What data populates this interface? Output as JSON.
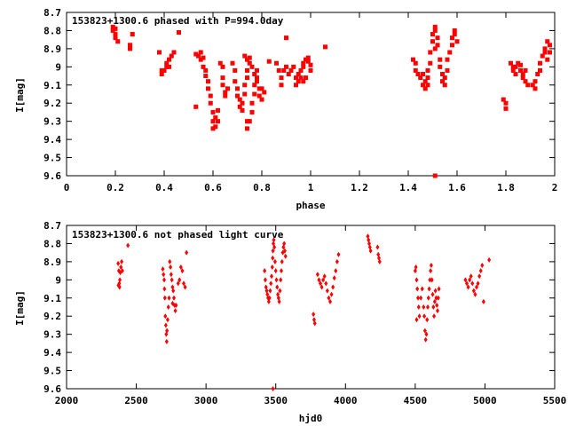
{
  "colors": {
    "points": "#ff0000",
    "frame": "#000000",
    "background": "#ffffff"
  },
  "chart_data": [
    {
      "type": "scatter",
      "title": "153823+1300.6 phased with P=994.0day",
      "xlabel": "phase",
      "ylabel": "I[mag]",
      "xlim": [
        0,
        2
      ],
      "ylim": [
        8.7,
        9.6
      ],
      "y_inverted": true,
      "grid": false,
      "marker": "filled-square",
      "xticks": [
        "0",
        "0.2",
        "0.4",
        "0.6",
        "0.8",
        "1",
        "1.2",
        "1.4",
        "1.6",
        "1.8",
        "2"
      ],
      "yticks": [
        "8.7",
        "8.8",
        "8.9",
        "9",
        "9.1",
        "9.2",
        "9.3",
        "9.4",
        "9.5",
        "9.6"
      ],
      "points": [
        [
          0.19,
          8.78
        ],
        [
          0.19,
          8.8
        ],
        [
          0.2,
          8.82
        ],
        [
          0.2,
          8.84
        ],
        [
          0.21,
          8.86
        ],
        [
          0.2,
          8.79
        ],
        [
          0.26,
          8.88
        ],
        [
          0.26,
          8.9
        ],
        [
          0.27,
          8.82
        ],
        [
          0.38,
          8.92
        ],
        [
          0.39,
          9.02
        ],
        [
          0.39,
          9.04
        ],
        [
          0.4,
          9.02
        ],
        [
          0.41,
          9.0
        ],
        [
          0.41,
          8.98
        ],
        [
          0.42,
          8.96
        ],
        [
          0.43,
          8.94
        ],
        [
          0.44,
          8.92
        ],
        [
          0.42,
          9.0
        ],
        [
          0.46,
          8.81
        ],
        [
          0.53,
          8.93
        ],
        [
          0.54,
          8.94
        ],
        [
          0.55,
          8.92
        ],
        [
          0.55,
          8.96
        ],
        [
          0.56,
          8.95
        ],
        [
          0.56,
          9.0
        ],
        [
          0.57,
          9.02
        ],
        [
          0.57,
          9.05
        ],
        [
          0.58,
          9.08
        ],
        [
          0.58,
          9.12
        ],
        [
          0.59,
          9.16
        ],
        [
          0.59,
          9.2
        ],
        [
          0.6,
          9.25
        ],
        [
          0.6,
          9.3
        ],
        [
          0.6,
          9.34
        ],
        [
          0.61,
          9.33
        ],
        [
          0.61,
          9.28
        ],
        [
          0.62,
          9.3
        ],
        [
          0.62,
          9.24
        ],
        [
          0.53,
          9.22
        ],
        [
          0.64,
          9.06
        ],
        [
          0.64,
          9.1
        ],
        [
          0.65,
          9.14
        ],
        [
          0.65,
          9.16
        ],
        [
          0.66,
          9.12
        ],
        [
          0.63,
          8.98
        ],
        [
          0.64,
          9.0
        ],
        [
          0.68,
          8.98
        ],
        [
          0.69,
          9.02
        ],
        [
          0.69,
          9.08
        ],
        [
          0.7,
          9.12
        ],
        [
          0.7,
          9.16
        ],
        [
          0.71,
          9.18
        ],
        [
          0.71,
          9.22
        ],
        [
          0.72,
          9.24
        ],
        [
          0.72,
          9.2
        ],
        [
          0.73,
          9.15
        ],
        [
          0.73,
          9.1
        ],
        [
          0.74,
          9.06
        ],
        [
          0.74,
          9.02
        ],
        [
          0.75,
          8.98
        ],
        [
          0.75,
          8.95
        ],
        [
          0.74,
          9.3
        ],
        [
          0.74,
          9.34
        ],
        [
          0.75,
          9.3
        ],
        [
          0.76,
          9.25
        ],
        [
          0.76,
          9.2
        ],
        [
          0.77,
          9.15
        ],
        [
          0.77,
          9.1
        ],
        [
          0.78,
          9.06
        ],
        [
          0.78,
          9.08
        ],
        [
          0.79,
          9.12
        ],
        [
          0.79,
          9.16
        ],
        [
          0.8,
          9.18
        ],
        [
          0.81,
          9.14
        ],
        [
          0.8,
          9.12
        ],
        [
          0.73,
          8.94
        ],
        [
          0.74,
          8.96
        ],
        [
          0.76,
          9.0
        ],
        [
          0.77,
          9.04
        ],
        [
          0.78,
          9.02
        ],
        [
          0.83,
          8.97
        ],
        [
          0.86,
          8.98
        ],
        [
          0.87,
          9.02
        ],
        [
          0.88,
          9.06
        ],
        [
          0.88,
          9.1
        ],
        [
          0.89,
          9.02
        ],
        [
          0.9,
          9.0
        ],
        [
          0.9,
          8.84
        ],
        [
          0.91,
          9.04
        ],
        [
          0.92,
          9.02
        ],
        [
          0.93,
          9.0
        ],
        [
          0.94,
          9.06
        ],
        [
          0.94,
          9.1
        ],
        [
          0.95,
          9.04
        ],
        [
          0.95,
          9.08
        ],
        [
          0.96,
          9.06
        ],
        [
          0.96,
          9.02
        ],
        [
          0.97,
          9.0
        ],
        [
          0.97,
          8.98
        ],
        [
          0.98,
          8.96
        ],
        [
          0.99,
          8.95
        ],
        [
          0.99,
          8.97
        ],
        [
          1.0,
          8.99
        ],
        [
          1.0,
          9.02
        ],
        [
          0.97,
          9.08
        ],
        [
          0.98,
          9.06
        ],
        [
          1.06,
          8.89
        ],
        [
          1.42,
          8.96
        ],
        [
          1.43,
          8.98
        ],
        [
          1.43,
          9.02
        ],
        [
          1.44,
          9.04
        ],
        [
          1.45,
          9.06
        ],
        [
          1.46,
          9.1
        ],
        [
          1.46,
          9.04
        ],
        [
          1.47,
          9.08
        ],
        [
          1.47,
          9.12
        ],
        [
          1.48,
          9.1
        ],
        [
          1.48,
          9.06
        ],
        [
          1.48,
          9.02
        ],
        [
          1.49,
          8.98
        ],
        [
          1.49,
          8.92
        ],
        [
          1.5,
          8.86
        ],
        [
          1.5,
          8.82
        ],
        [
          1.51,
          8.8
        ],
        [
          1.51,
          8.78
        ],
        [
          1.51,
          8.9
        ],
        [
          1.52,
          8.84
        ],
        [
          1.52,
          8.88
        ],
        [
          1.53,
          8.96
        ],
        [
          1.53,
          9.0
        ],
        [
          1.54,
          9.04
        ],
        [
          1.54,
          9.08
        ],
        [
          1.55,
          9.1
        ],
        [
          1.55,
          9.06
        ],
        [
          1.56,
          9.02
        ],
        [
          1.56,
          8.96
        ],
        [
          1.57,
          8.92
        ],
        [
          1.58,
          8.88
        ],
        [
          1.58,
          8.84
        ],
        [
          1.59,
          8.8
        ],
        [
          1.59,
          8.82
        ],
        [
          1.6,
          8.86
        ],
        [
          1.51,
          9.6
        ],
        [
          1.79,
          9.18
        ],
        [
          1.8,
          9.2
        ],
        [
          1.8,
          9.23
        ],
        [
          1.82,
          8.98
        ],
        [
          1.83,
          9.0
        ],
        [
          1.83,
          9.02
        ],
        [
          1.84,
          9.04
        ],
        [
          1.84,
          9.0
        ],
        [
          1.85,
          8.98
        ],
        [
          1.86,
          9.02
        ],
        [
          1.87,
          9.04
        ],
        [
          1.87,
          9.06
        ],
        [
          1.88,
          9.08
        ],
        [
          1.89,
          9.1
        ],
        [
          1.88,
          9.02
        ],
        [
          1.86,
          8.99
        ],
        [
          1.91,
          9.1
        ],
        [
          1.92,
          9.12
        ],
        [
          1.92,
          9.08
        ],
        [
          1.93,
          9.04
        ],
        [
          1.94,
          9.02
        ],
        [
          1.94,
          8.98
        ],
        [
          1.95,
          8.94
        ],
        [
          1.96,
          8.92
        ],
        [
          1.96,
          8.9
        ],
        [
          1.97,
          8.86
        ],
        [
          1.98,
          8.88
        ],
        [
          1.98,
          8.92
        ],
        [
          1.97,
          8.96
        ]
      ]
    },
    {
      "type": "scatter",
      "title": "153823+1300.6 not phased light curve",
      "xlabel": "hjd0",
      "ylabel": "I[mag]",
      "xlim": [
        2000,
        5500
      ],
      "ylim": [
        8.7,
        9.6
      ],
      "y_inverted": true,
      "grid": false,
      "marker": "filled-diamond",
      "xticks": [
        "2000",
        "2500",
        "3000",
        "3500",
        "4000",
        "4500",
        "5000",
        "5500"
      ],
      "yticks": [
        "8.7",
        "8.8",
        "8.9",
        "9",
        "9.1",
        "9.2",
        "9.3",
        "9.4",
        "9.5",
        "9.6"
      ],
      "points": [
        [
          2370,
          8.91
        ],
        [
          2375,
          8.95
        ],
        [
          2378,
          9.02
        ],
        [
          2380,
          9.04
        ],
        [
          2382,
          9.0
        ],
        [
          2385,
          8.96
        ],
        [
          2390,
          8.93
        ],
        [
          2395,
          8.9
        ],
        [
          2400,
          8.95
        ],
        [
          2372,
          9.03
        ],
        [
          2440,
          8.81
        ],
        [
          2690,
          8.94
        ],
        [
          2695,
          8.97
        ],
        [
          2700,
          9.0
        ],
        [
          2702,
          9.05
        ],
        [
          2705,
          9.1
        ],
        [
          2708,
          9.2
        ],
        [
          2712,
          9.25
        ],
        [
          2715,
          9.3
        ],
        [
          2718,
          9.34
        ],
        [
          2720,
          9.28
        ],
        [
          2725,
          9.22
        ],
        [
          2730,
          9.15
        ],
        [
          2735,
          9.1
        ],
        [
          2740,
          8.9
        ],
        [
          2745,
          8.93
        ],
        [
          2750,
          8.97
        ],
        [
          2755,
          9.0
        ],
        [
          2760,
          9.04
        ],
        [
          2765,
          9.06
        ],
        [
          2770,
          9.1
        ],
        [
          2775,
          9.14
        ],
        [
          2780,
          9.17
        ],
        [
          2785,
          9.14
        ],
        [
          2760,
          9.13
        ],
        [
          2800,
          9.02
        ],
        [
          2810,
          9.0
        ],
        [
          2820,
          8.93
        ],
        [
          2830,
          8.95
        ],
        [
          2840,
          9.02
        ],
        [
          2850,
          9.04
        ],
        [
          2860,
          8.85
        ],
        [
          3420,
          8.95
        ],
        [
          3425,
          9.0
        ],
        [
          3430,
          9.04
        ],
        [
          3435,
          9.06
        ],
        [
          3440,
          9.08
        ],
        [
          3445,
          9.1
        ],
        [
          3450,
          9.12
        ],
        [
          3455,
          9.1
        ],
        [
          3460,
          9.06
        ],
        [
          3465,
          9.02
        ],
        [
          3470,
          8.98
        ],
        [
          3475,
          8.93
        ],
        [
          3478,
          8.88
        ],
        [
          3480,
          8.84
        ],
        [
          3483,
          8.8
        ],
        [
          3486,
          8.78
        ],
        [
          3490,
          8.82
        ],
        [
          3495,
          8.9
        ],
        [
          3500,
          8.95
        ],
        [
          3505,
          9.0
        ],
        [
          3510,
          9.04
        ],
        [
          3515,
          9.08
        ],
        [
          3520,
          9.1
        ],
        [
          3525,
          9.12
        ],
        [
          3530,
          9.06
        ],
        [
          3535,
          9.0
        ],
        [
          3540,
          8.95
        ],
        [
          3545,
          8.9
        ],
        [
          3550,
          8.85
        ],
        [
          3555,
          8.82
        ],
        [
          3560,
          8.8
        ],
        [
          3565,
          8.84
        ],
        [
          3570,
          8.87
        ],
        [
          3480,
          9.6
        ],
        [
          3770,
          9.19
        ],
        [
          3775,
          9.22
        ],
        [
          3780,
          9.24
        ],
        [
          3800,
          8.97
        ],
        [
          3810,
          9.0
        ],
        [
          3820,
          9.02
        ],
        [
          3830,
          9.04
        ],
        [
          3840,
          9.0
        ],
        [
          3850,
          8.98
        ],
        [
          3860,
          9.02
        ],
        [
          3870,
          9.06
        ],
        [
          3880,
          9.1
        ],
        [
          3890,
          9.12
        ],
        [
          3900,
          9.08
        ],
        [
          3910,
          9.04
        ],
        [
          3920,
          8.99
        ],
        [
          3930,
          8.95
        ],
        [
          3940,
          8.9
        ],
        [
          3950,
          8.86
        ],
        [
          4160,
          8.76
        ],
        [
          4165,
          8.78
        ],
        [
          4170,
          8.8
        ],
        [
          4175,
          8.82
        ],
        [
          4180,
          8.84
        ],
        [
          4230,
          8.82
        ],
        [
          4235,
          8.86
        ],
        [
          4240,
          8.88
        ],
        [
          4245,
          8.9
        ],
        [
          4500,
          8.95
        ],
        [
          4505,
          8.93
        ],
        [
          4510,
          9.0
        ],
        [
          4515,
          9.05
        ],
        [
          4520,
          9.1
        ],
        [
          4525,
          9.15
        ],
        [
          4530,
          9.2
        ],
        [
          4540,
          9.1
        ],
        [
          4550,
          9.05
        ],
        [
          4560,
          9.15
        ],
        [
          4565,
          9.2
        ],
        [
          4570,
          9.28
        ],
        [
          4575,
          9.33
        ],
        [
          4580,
          9.3
        ],
        [
          4585,
          9.22
        ],
        [
          4590,
          9.15
        ],
        [
          4595,
          9.1
        ],
        [
          4600,
          9.05
        ],
        [
          4605,
          9.0
        ],
        [
          4610,
          8.95
        ],
        [
          4615,
          8.92
        ],
        [
          4620,
          9.0
        ],
        [
          4625,
          9.08
        ],
        [
          4630,
          9.15
        ],
        [
          4635,
          9.2
        ],
        [
          4640,
          9.12
        ],
        [
          4645,
          9.06
        ],
        [
          4650,
          9.1
        ],
        [
          4655,
          9.14
        ],
        [
          4660,
          9.17
        ],
        [
          4665,
          9.1
        ],
        [
          4670,
          9.05
        ],
        [
          4510,
          9.22
        ],
        [
          4860,
          9.0
        ],
        [
          4870,
          9.02
        ],
        [
          4880,
          9.04
        ],
        [
          4890,
          9.0
        ],
        [
          4900,
          8.98
        ],
        [
          4910,
          9.02
        ],
        [
          4920,
          9.06
        ],
        [
          4930,
          9.08
        ],
        [
          4940,
          9.04
        ],
        [
          4950,
          9.02
        ],
        [
          4960,
          8.98
        ],
        [
          4970,
          8.95
        ],
        [
          4980,
          8.92
        ],
        [
          4990,
          9.12
        ],
        [
          5030,
          8.89
        ]
      ]
    }
  ]
}
